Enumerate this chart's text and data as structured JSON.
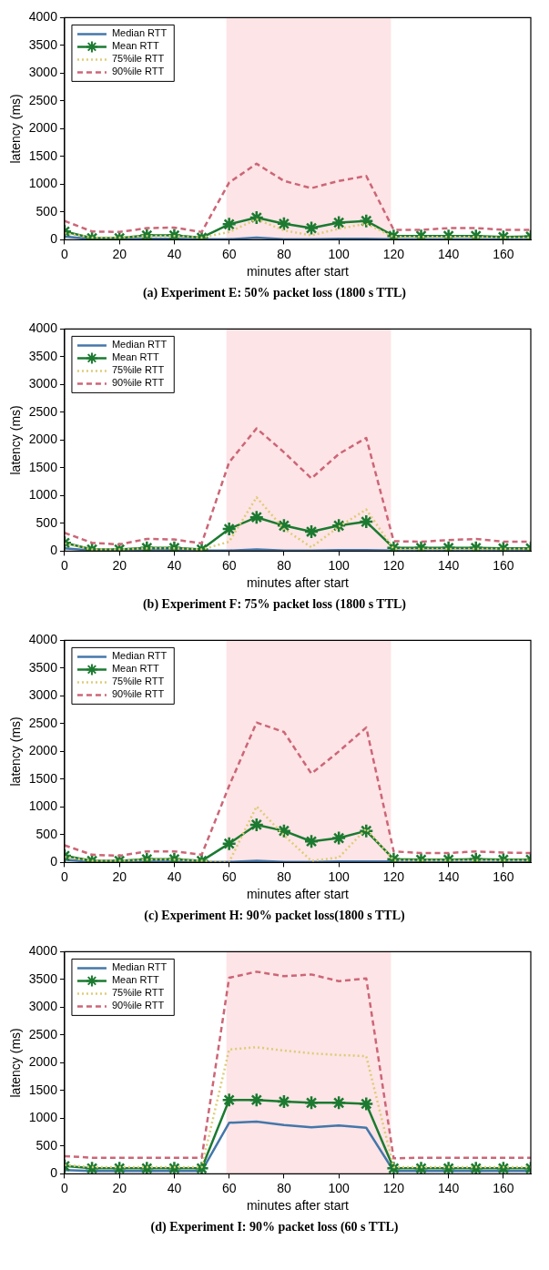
{
  "chart_data": [
    {
      "type": "line",
      "title": "(a) Experiment E: 50% packet loss (1800 s TTL)",
      "xlabel": "minutes after start",
      "ylabel": "latency (ms)",
      "x": [
        0,
        10,
        20,
        30,
        40,
        50,
        60,
        70,
        80,
        90,
        100,
        110,
        120,
        130,
        140,
        150,
        160,
        170
      ],
      "xlim": [
        0,
        170
      ],
      "xticks": [
        0,
        20,
        40,
        60,
        80,
        100,
        120,
        140,
        160
      ],
      "ylim": [
        0,
        4000
      ],
      "yticks": [
        0,
        500,
        1000,
        1500,
        2000,
        2500,
        3000,
        3500,
        4000
      ],
      "grid": false,
      "legend": "top left",
      "bands": [
        {
          "axis": "x",
          "from": 59,
          "to": 119,
          "color": "#fde4e6"
        }
      ],
      "series": [
        {
          "name": "Median RTT",
          "color": "#4477aa",
          "line_style": "solid",
          "marker": "none",
          "values": [
            60,
            10,
            10,
            20,
            20,
            10,
            10,
            40,
            10,
            10,
            20,
            20,
            10,
            10,
            10,
            10,
            10,
            10
          ]
        },
        {
          "name": "Mean RTT",
          "color": "#1b7a30",
          "line_style": "solid",
          "marker": "cross",
          "values": [
            150,
            30,
            30,
            80,
            80,
            40,
            280,
            400,
            290,
            210,
            310,
            340,
            70,
            70,
            70,
            70,
            50,
            60
          ]
        },
        {
          "name": "75%ile RTT",
          "color": "#ddcc77",
          "line_style": "dotted",
          "marker": "none",
          "values": [
            120,
            40,
            40,
            70,
            70,
            40,
            140,
            370,
            170,
            80,
            200,
            290,
            50,
            50,
            50,
            50,
            40,
            40
          ]
        },
        {
          "name": "90%ile RTT",
          "color": "#cc6677",
          "line_style": "dashed",
          "marker": "none",
          "values": [
            340,
            150,
            140,
            210,
            220,
            140,
            1030,
            1370,
            1060,
            930,
            1060,
            1150,
            180,
            180,
            210,
            210,
            180,
            180
          ]
        }
      ]
    },
    {
      "type": "line",
      "title": "(b) Experiment F: 75% packet loss (1800 s TTL)",
      "xlabel": "minutes after start",
      "ylabel": "latency (ms)",
      "x": [
        0,
        10,
        20,
        30,
        40,
        50,
        60,
        70,
        80,
        90,
        100,
        110,
        120,
        130,
        140,
        150,
        160,
        170
      ],
      "xlim": [
        0,
        170
      ],
      "xticks": [
        0,
        20,
        40,
        60,
        80,
        100,
        120,
        140,
        160
      ],
      "ylim": [
        0,
        4000
      ],
      "yticks": [
        0,
        500,
        1000,
        1500,
        2000,
        2500,
        3000,
        3500,
        4000
      ],
      "grid": false,
      "legend": "top left",
      "bands": [
        {
          "axis": "x",
          "from": 59,
          "to": 119,
          "color": "#fde4e6"
        }
      ],
      "series": [
        {
          "name": "Median RTT",
          "color": "#4477aa",
          "line_style": "solid",
          "marker": "none",
          "values": [
            50,
            10,
            10,
            20,
            20,
            10,
            10,
            30,
            10,
            10,
            20,
            20,
            10,
            10,
            10,
            10,
            10,
            10
          ]
        },
        {
          "name": "Mean RTT",
          "color": "#1b7a30",
          "line_style": "solid",
          "marker": "cross",
          "values": [
            150,
            30,
            30,
            60,
            60,
            30,
            400,
            610,
            460,
            350,
            460,
            530,
            60,
            60,
            60,
            60,
            50,
            50
          ]
        },
        {
          "name": "75%ile RTT",
          "color": "#ddcc77",
          "line_style": "dotted",
          "marker": "none",
          "values": [
            140,
            30,
            30,
            50,
            50,
            30,
            170,
            970,
            400,
            70,
            440,
            750,
            40,
            40,
            40,
            40,
            40,
            40
          ]
        },
        {
          "name": "90%ile RTT",
          "color": "#cc6677",
          "line_style": "dashed",
          "marker": "none",
          "values": [
            330,
            150,
            120,
            220,
            210,
            140,
            1600,
            2210,
            1780,
            1310,
            1750,
            2040,
            180,
            170,
            200,
            220,
            170,
            170
          ]
        }
      ]
    },
    {
      "type": "line",
      "title": "(c) Experiment H: 90% packet loss(1800 s TTL)",
      "xlabel": "minutes after start",
      "ylabel": "latency (ms)",
      "x": [
        0,
        10,
        20,
        30,
        40,
        50,
        60,
        70,
        80,
        90,
        100,
        110,
        120,
        130,
        140,
        150,
        160,
        170
      ],
      "xlim": [
        0,
        170
      ],
      "xticks": [
        0,
        20,
        40,
        60,
        80,
        100,
        120,
        140,
        160
      ],
      "ylim": [
        0,
        4000
      ],
      "yticks": [
        0,
        500,
        1000,
        1500,
        2000,
        2500,
        3000,
        3500,
        4000
      ],
      "grid": false,
      "legend": "top left",
      "bands": [
        {
          "axis": "x",
          "from": 59,
          "to": 119,
          "color": "#fde4e6"
        }
      ],
      "series": [
        {
          "name": "Median RTT",
          "color": "#4477aa",
          "line_style": "solid",
          "marker": "none",
          "values": [
            50,
            10,
            10,
            20,
            20,
            10,
            10,
            30,
            10,
            10,
            20,
            20,
            20,
            10,
            10,
            10,
            10,
            10
          ]
        },
        {
          "name": "Mean RTT",
          "color": "#1b7a30",
          "line_style": "solid",
          "marker": "cross",
          "values": [
            120,
            30,
            30,
            60,
            60,
            30,
            340,
            680,
            570,
            380,
            440,
            570,
            60,
            50,
            50,
            60,
            50,
            50
          ]
        },
        {
          "name": "75%ile RTT",
          "color": "#ddcc77",
          "line_style": "dotted",
          "marker": "none",
          "values": [
            100,
            30,
            30,
            50,
            50,
            30,
            10,
            1010,
            490,
            30,
            90,
            610,
            40,
            40,
            40,
            40,
            40,
            40
          ]
        },
        {
          "name": "90%ile RTT",
          "color": "#cc6677",
          "line_style": "dashed",
          "marker": "none",
          "values": [
            310,
            140,
            120,
            200,
            200,
            140,
            1380,
            2520,
            2350,
            1600,
            2000,
            2430,
            200,
            170,
            170,
            200,
            180,
            170
          ]
        }
      ]
    },
    {
      "type": "line",
      "title": "(d) Experiment I: 90% packet loss (60 s TTL)",
      "xlabel": "minutes after start",
      "ylabel": "latency (ms)",
      "x": [
        0,
        10,
        20,
        30,
        40,
        50,
        60,
        70,
        80,
        90,
        100,
        110,
        120,
        130,
        140,
        150,
        160,
        170
      ],
      "xlim": [
        0,
        170
      ],
      "xticks": [
        0,
        20,
        40,
        60,
        80,
        100,
        120,
        140,
        160
      ],
      "ylim": [
        0,
        4000
      ],
      "yticks": [
        0,
        500,
        1000,
        1500,
        2000,
        2500,
        3000,
        3500,
        4000
      ],
      "grid": false,
      "legend": "top left",
      "bands": [
        {
          "axis": "x",
          "from": 59,
          "to": 119,
          "color": "#fde4e6"
        }
      ],
      "series": [
        {
          "name": "Median RTT",
          "color": "#4477aa",
          "line_style": "solid",
          "marker": "none",
          "values": [
            70,
            50,
            50,
            50,
            50,
            50,
            920,
            940,
            880,
            840,
            870,
            830,
            50,
            50,
            50,
            50,
            50,
            50
          ]
        },
        {
          "name": "Mean RTT",
          "color": "#1b7a30",
          "line_style": "solid",
          "marker": "cross",
          "values": [
            140,
            100,
            100,
            100,
            100,
            100,
            1330,
            1330,
            1300,
            1280,
            1280,
            1260,
            100,
            100,
            100,
            100,
            100,
            100
          ]
        },
        {
          "name": "75%ile RTT",
          "color": "#ddcc77",
          "line_style": "dotted",
          "marker": "none",
          "values": [
            160,
            120,
            120,
            120,
            120,
            120,
            2240,
            2280,
            2220,
            2170,
            2140,
            2120,
            120,
            120,
            120,
            120,
            120,
            120
          ]
        },
        {
          "name": "90%ile RTT",
          "color": "#cc6677",
          "line_style": "dashed",
          "marker": "none",
          "values": [
            320,
            290,
            290,
            290,
            290,
            290,
            3530,
            3640,
            3560,
            3590,
            3470,
            3520,
            280,
            290,
            290,
            290,
            290,
            290
          ]
        }
      ]
    }
  ]
}
